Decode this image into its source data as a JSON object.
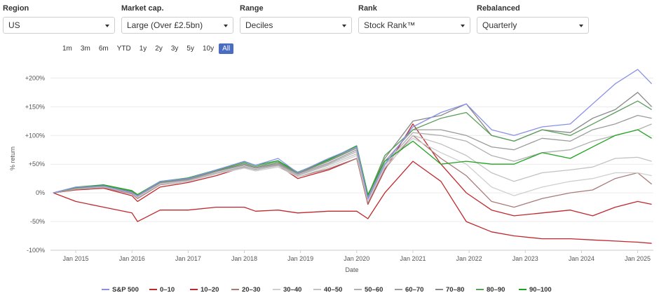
{
  "filters": [
    {
      "label": "Region",
      "value": "US"
    },
    {
      "label": "Market cap.",
      "value": "Large (Over £2.5bn)"
    },
    {
      "label": "Range",
      "value": "Deciles"
    },
    {
      "label": "Rank",
      "value": "Stock Rank™"
    },
    {
      "label": "Rebalanced",
      "value": "Quarterly"
    }
  ],
  "ranges": [
    "1m",
    "3m",
    "6m",
    "YTD",
    "1y",
    "2y",
    "3y",
    "5y",
    "10y",
    "All"
  ],
  "active_range": "All",
  "chart_data": {
    "type": "line",
    "title": "",
    "xlabel": "Date",
    "ylabel": "% return",
    "ylim": [
      -100,
      220
    ],
    "xlim": [
      2014.55,
      2025.28
    ],
    "y_ticks": [
      -100,
      -50,
      0,
      50,
      100,
      150,
      200
    ],
    "y_tick_labels": [
      "-100%",
      "-50%",
      "0%",
      "+50%",
      "+100%",
      "+150%",
      "+200%"
    ],
    "x_ticks": [
      2015,
      2016,
      2017,
      2018,
      2019,
      2020,
      2021,
      2022,
      2023,
      2024,
      2025
    ],
    "x_tick_labels": [
      "Jan 2015",
      "Jan 2016",
      "Jan 2017",
      "Jan 2018",
      "Jan 2019",
      "Jan 2020",
      "Jan 2021",
      "Jan 2022",
      "Jan 2023",
      "Jan 2024",
      "Jan 2025"
    ],
    "grid": "horizontal",
    "legend_position": "bottom",
    "x": [
      2014.6,
      2015.0,
      2015.5,
      2016.0,
      2016.1,
      2016.5,
      2017.0,
      2017.5,
      2018.0,
      2018.2,
      2018.6,
      2018.95,
      2019.5,
      2020.0,
      2020.2,
      2020.5,
      2021.0,
      2021.5,
      2021.95,
      2022.4,
      2022.8,
      2023.3,
      2023.8,
      2024.2,
      2024.6,
      2025.0,
      2025.25
    ],
    "series": [
      {
        "name": "S&P 500",
        "color": "#8a8fe8",
        "values": [
          0,
          10,
          12,
          0,
          -5,
          20,
          25,
          40,
          55,
          48,
          60,
          35,
          60,
          80,
          -10,
          50,
          115,
          140,
          155,
          110,
          100,
          115,
          120,
          155,
          190,
          215,
          190
        ]
      },
      {
        "name": "0–10",
        "color": "#c0282d",
        "values": [
          0,
          -15,
          -25,
          -35,
          -50,
          -30,
          -30,
          -25,
          -25,
          -32,
          -30,
          -35,
          -32,
          -32,
          -45,
          0,
          55,
          20,
          -50,
          -68,
          -75,
          -80,
          -80,
          -82,
          -84,
          -86,
          -88
        ]
      },
      {
        "name": "10–20",
        "color": "#c0282d",
        "values": [
          0,
          5,
          8,
          -5,
          -15,
          10,
          18,
          30,
          45,
          40,
          48,
          25,
          40,
          60,
          -20,
          40,
          120,
          50,
          0,
          -30,
          -40,
          -35,
          -30,
          -40,
          -25,
          -15,
          -20
        ]
      },
      {
        "name": "20–30",
        "color": "#aa7a7a",
        "values": [
          0,
          6,
          9,
          -2,
          -10,
          14,
          20,
          33,
          45,
          40,
          48,
          28,
          42,
          60,
          -18,
          42,
          100,
          60,
          30,
          -15,
          -25,
          -10,
          0,
          5,
          25,
          35,
          15
        ]
      },
      {
        "name": "30–40",
        "color": "#cfcfcf",
        "values": [
          0,
          7,
          10,
          0,
          -8,
          15,
          20,
          33,
          43,
          38,
          45,
          28,
          45,
          65,
          -15,
          45,
          95,
          70,
          50,
          10,
          -5,
          10,
          20,
          25,
          35,
          35,
          30
        ]
      },
      {
        "name": "40–50",
        "color": "#c2c2c2",
        "values": [
          0,
          7,
          10,
          0,
          -7,
          16,
          21,
          34,
          44,
          40,
          47,
          30,
          48,
          68,
          -12,
          48,
          100,
          85,
          65,
          35,
          20,
          35,
          40,
          45,
          60,
          62,
          55
        ]
      },
      {
        "name": "50–60",
        "color": "#b0b0b0",
        "values": [
          0,
          8,
          11,
          1,
          -6,
          17,
          22,
          35,
          46,
          41,
          49,
          31,
          50,
          72,
          -10,
          50,
          105,
          100,
          90,
          65,
          55,
          70,
          75,
          90,
          100,
          110,
          120
        ]
      },
      {
        "name": "60–70",
        "color": "#9c9c9c",
        "values": [
          0,
          8,
          12,
          2,
          -5,
          18,
          23,
          37,
          48,
          43,
          50,
          33,
          52,
          75,
          -8,
          55,
          110,
          110,
          100,
          80,
          75,
          95,
          90,
          110,
          120,
          135,
          130
        ]
      },
      {
        "name": "70–80",
        "color": "#888888",
        "values": [
          0,
          9,
          12,
          2,
          -5,
          18,
          24,
          38,
          50,
          44,
          52,
          34,
          55,
          78,
          -5,
          60,
          125,
          135,
          155,
          100,
          90,
          110,
          105,
          130,
          145,
          175,
          150
        ]
      },
      {
        "name": "80–90",
        "color": "#5a9e5a",
        "values": [
          0,
          9,
          13,
          3,
          -4,
          19,
          25,
          39,
          52,
          46,
          54,
          35,
          57,
          80,
          -5,
          65,
          110,
          130,
          140,
          100,
          90,
          110,
          100,
          120,
          140,
          160,
          145
        ]
      },
      {
        "name": "90–100",
        "color": "#1fa31f",
        "values": [
          0,
          10,
          14,
          4,
          -3,
          20,
          26,
          40,
          54,
          48,
          56,
          36,
          58,
          82,
          -3,
          55,
          90,
          50,
          55,
          50,
          50,
          70,
          60,
          80,
          100,
          110,
          95
        ]
      }
    ]
  }
}
